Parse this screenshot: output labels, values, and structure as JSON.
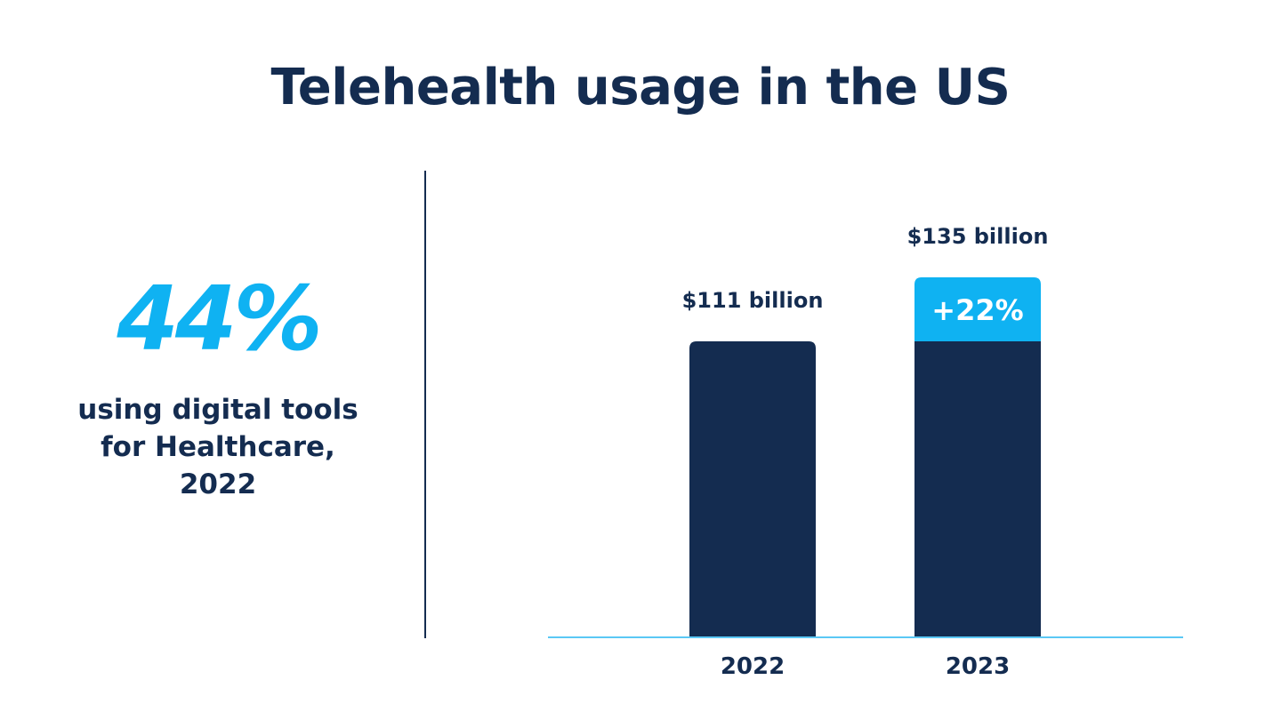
{
  "title": "Telehealth usage in the US",
  "stat": {
    "value": "44%",
    "label_lines": [
      "using digital tools",
      "for Healthcare,",
      "2022"
    ]
  },
  "colors": {
    "navy": "#142c50",
    "accent": "#0fb2f2",
    "baseline": "#5bc8f5"
  },
  "chart_data": {
    "type": "bar",
    "categories": [
      "2022",
      "2023"
    ],
    "values": [
      111,
      135
    ],
    "data_labels": [
      "$111 billion",
      "$135 billion"
    ],
    "growth_label": "+22%",
    "xlabel": "",
    "ylabel": "",
    "grid": false
  }
}
